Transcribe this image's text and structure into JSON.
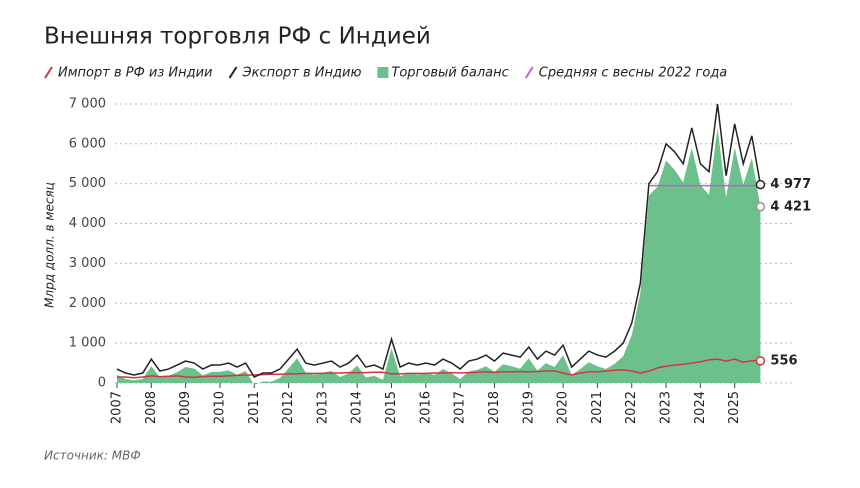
{
  "chart_data": {
    "type": "line",
    "title": "Внешняя торговля РФ с Индией",
    "y_label": "Млрд долл. в месяц",
    "source": "Источник: МВФ",
    "xlim": [
      2007,
      2026
    ],
    "xticks": [
      2007,
      2008,
      2009,
      2010,
      2011,
      2012,
      2013,
      2014,
      2015,
      2016,
      2017,
      2018,
      2019,
      2020,
      2021,
      2022,
      2023,
      2024,
      2025
    ],
    "ylim": [
      0,
      7400
    ],
    "yticks": [
      0,
      {
        "value": 1000,
        "label": "1 000"
      },
      {
        "value": 2000,
        "label": "2 000"
      },
      {
        "value": 3000,
        "label": "3 000"
      },
      {
        "value": 4000,
        "label": "4 000"
      },
      {
        "value": 5000,
        "label": "5 000"
      },
      {
        "value": 6000,
        "label": "6 000"
      },
      {
        "value": 7000,
        "label": "7 000"
      }
    ],
    "grid": true,
    "x": [
      2007,
      2007.25,
      2007.5,
      2007.75,
      2008,
      2008.25,
      2008.5,
      2008.75,
      2009,
      2009.25,
      2009.5,
      2009.75,
      2010,
      2010.25,
      2010.5,
      2010.75,
      2011,
      2011.25,
      2011.5,
      2011.75,
      2012,
      2012.25,
      2012.5,
      2012.75,
      2013,
      2013.25,
      2013.5,
      2013.75,
      2014,
      2014.25,
      2014.5,
      2014.75,
      2015,
      2015.25,
      2015.5,
      2015.75,
      2016,
      2016.25,
      2016.5,
      2016.75,
      2017,
      2017.25,
      2017.5,
      2017.75,
      2018,
      2018.25,
      2018.5,
      2018.75,
      2019,
      2019.25,
      2019.5,
      2019.75,
      2020,
      2020.25,
      2020.5,
      2020.75,
      2021,
      2021.25,
      2021.5,
      2021.75,
      2022,
      2022.25,
      2022.5,
      2022.75,
      2023,
      2023.25,
      2023.5,
      2023.75,
      2024,
      2024.25,
      2024.5,
      2024.75,
      2025,
      2025.25,
      2025.5,
      2025.75
    ],
    "series": [
      {
        "name": "Импорт в РФ из Индии",
        "color": "#d6333f",
        "kind": "line",
        "values": [
          150,
          150,
          130,
          150,
          180,
          160,
          170,
          180,
          150,
          140,
          160,
          170,
          170,
          180,
          190,
          200,
          200,
          210,
          220,
          220,
          230,
          230,
          240,
          240,
          240,
          250,
          250,
          260,
          260,
          260,
          270,
          270,
          230,
          230,
          240,
          240,
          240,
          250,
          250,
          260,
          250,
          260,
          270,
          280,
          270,
          280,
          280,
          290,
          280,
          290,
          300,
          300,
          250,
          200,
          250,
          280,
          280,
          300,
          320,
          330,
          300,
          250,
          300,
          380,
          420,
          450,
          470,
          500,
          530,
          580,
          600,
          550,
          600,
          520,
          560,
          556
        ],
        "value_labels": [
          null,
          null,
          null,
          null,
          null,
          null,
          null,
          null,
          null,
          null,
          null,
          null,
          null,
          null,
          null,
          null,
          null,
          null,
          null,
          null,
          null,
          null,
          null,
          null,
          null,
          null,
          null,
          null,
          null,
          null,
          null,
          null,
          null,
          null,
          null,
          null,
          null,
          null,
          null,
          null,
          null,
          null,
          null,
          null,
          null,
          null,
          null,
          null,
          null,
          null,
          null,
          null,
          null,
          null,
          null,
          null,
          null,
          null,
          null,
          null,
          null,
          null,
          null,
          null,
          null,
          null,
          null,
          null,
          null,
          null,
          null,
          null,
          null,
          null,
          null,
          "556"
        ]
      },
      {
        "name": "Экспорт в Индию",
        "color": "#222222",
        "kind": "line",
        "values": [
          350,
          250,
          200,
          250,
          600,
          300,
          350,
          450,
          550,
          500,
          350,
          450,
          450,
          500,
          400,
          500,
          150,
          250,
          250,
          350,
          600,
          850,
          500,
          450,
          500,
          550,
          400,
          500,
          700,
          400,
          450,
          350,
          1100,
          400,
          500,
          450,
          500,
          450,
          600,
          500,
          350,
          550,
          600,
          700,
          550,
          750,
          700,
          650,
          900,
          600,
          800,
          700,
          950,
          400,
          600,
          800,
          700,
          650,
          800,
          1000,
          1500,
          2500,
          5000,
          5300,
          6000,
          5800,
          5500,
          6400,
          5500,
          5300,
          7000,
          5200,
          6500,
          5500,
          6200,
          4977
        ],
        "value_labels": [
          null,
          null,
          null,
          null,
          null,
          null,
          null,
          null,
          null,
          null,
          null,
          null,
          null,
          null,
          null,
          null,
          null,
          null,
          null,
          null,
          null,
          null,
          null,
          null,
          null,
          null,
          null,
          null,
          null,
          null,
          null,
          null,
          null,
          null,
          null,
          null,
          null,
          null,
          null,
          null,
          null,
          null,
          null,
          null,
          null,
          null,
          null,
          null,
          null,
          null,
          null,
          null,
          null,
          null,
          null,
          null,
          null,
          null,
          null,
          null,
          null,
          null,
          null,
          null,
          null,
          null,
          null,
          null,
          null,
          null,
          null,
          null,
          null,
          null,
          null,
          "4 977"
        ]
      },
      {
        "name": "Торговый баланс",
        "color": "#6cc08b",
        "kind": "area",
        "values": [
          200,
          100,
          70,
          100,
          420,
          140,
          180,
          270,
          400,
          360,
          190,
          280,
          280,
          320,
          210,
          300,
          -50,
          40,
          30,
          130,
          370,
          620,
          260,
          210,
          260,
          300,
          150,
          240,
          440,
          140,
          180,
          80,
          870,
          170,
          260,
          210,
          260,
          200,
          350,
          240,
          100,
          290,
          330,
          420,
          280,
          470,
          420,
          360,
          620,
          310,
          500,
          400,
          700,
          200,
          350,
          520,
          420,
          350,
          480,
          670,
          1200,
          2250,
          4700,
          4920,
          5580,
          5350,
          5030,
          5900,
          4970,
          4720,
          6400,
          4650,
          5900,
          4980,
          5640,
          4421
        ],
        "value_labels": [
          null,
          null,
          null,
          null,
          null,
          null,
          null,
          null,
          null,
          null,
          null,
          null,
          null,
          null,
          null,
          null,
          null,
          null,
          null,
          null,
          null,
          null,
          null,
          null,
          null,
          null,
          null,
          null,
          null,
          null,
          null,
          null,
          null,
          null,
          null,
          null,
          null,
          null,
          null,
          null,
          null,
          null,
          null,
          null,
          null,
          null,
          null,
          null,
          null,
          null,
          null,
          null,
          null,
          null,
          null,
          null,
          null,
          null,
          null,
          null,
          null,
          null,
          null,
          null,
          null,
          null,
          null,
          null,
          null,
          null,
          null,
          null,
          null,
          null,
          null,
          "4 421"
        ]
      }
    ],
    "average": {
      "name": "Средняя с весны 2022 года",
      "color": "#c45bd6",
      "x": [
        2022.5,
        2025.75
      ],
      "values": [
        4950,
        4950
      ]
    }
  }
}
